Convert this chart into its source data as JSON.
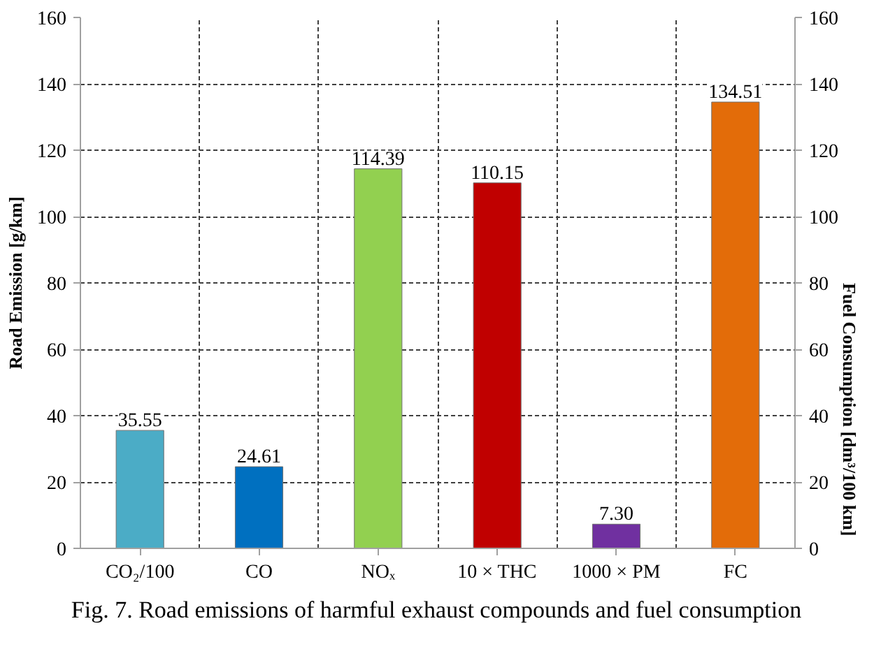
{
  "chart_data": {
    "type": "bar",
    "ylabel": "Road Emission [g/km]",
    "y2label": "Fuel Consumption [dm³/100 km]",
    "categories": [
      "CO₂/100",
      "CO",
      "NOₓ",
      "10 × THC",
      "1000 × PM",
      "FC"
    ],
    "series": [
      {
        "colors": [
          "#4bacc6",
          "#0070c0",
          "#92d050",
          "#c00000",
          "#7030a0",
          null
        ],
        "values": [
          35.55,
          24.61,
          114.39,
          110.15,
          7.3,
          null
        ],
        "value_labels": [
          "35.55",
          "24.61",
          "114.39",
          "110.15",
          "7.30",
          null
        ]
      },
      {
        "colors": [
          null,
          null,
          null,
          null,
          null,
          "#e36c09"
        ],
        "values": [
          null,
          null,
          null,
          null,
          null,
          134.51
        ],
        "value_labels": [
          null,
          null,
          null,
          null,
          null,
          "134.51"
        ]
      }
    ],
    "ylim": [
      0,
      160
    ],
    "yticks": [
      0,
      20,
      40,
      60,
      80,
      100,
      120,
      140,
      160
    ],
    "y2lim": [
      0,
      160
    ],
    "y2ticks": [
      0,
      20,
      40,
      60,
      80,
      100,
      120,
      140,
      160
    ],
    "grid": true,
    "annotations": [
      "Fig. 7. Road emissions of harmful exhaust compounds and fuel consumption"
    ]
  }
}
